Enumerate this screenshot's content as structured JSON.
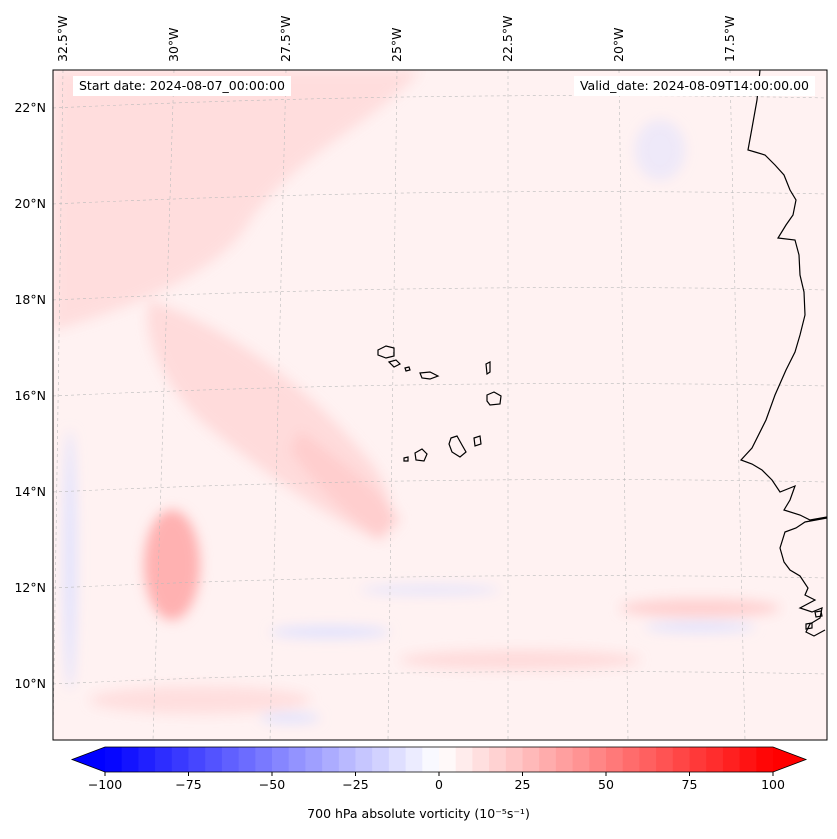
{
  "header": {
    "start_date": "Start date: 2024-08-07_00:00:00",
    "valid_date": "Valid_date: 2024-08-09T14:00:00.00"
  },
  "axes": {
    "lon_labels": [
      "32.5°W",
      "30°W",
      "27.5°W",
      "25°W",
      "22.5°W",
      "20°W",
      "17.5°W"
    ],
    "lat_labels": [
      "22°N",
      "20°N",
      "18°N",
      "16°N",
      "14°N",
      "12°N",
      "10°N"
    ]
  },
  "colorbar": {
    "label": "700 hPa absolute vorticity (10⁻⁵s⁻¹)",
    "min": -100,
    "max": 100,
    "ticks": [
      -100,
      -75,
      -50,
      -25,
      0,
      25,
      50,
      75,
      100
    ],
    "tick_labels": [
      "−100",
      "−75",
      "−50",
      "−25",
      "0",
      "25",
      "50",
      "75",
      "100"
    ],
    "low_color": "#0000ff",
    "mid_color": "#ffffff",
    "high_color": "#ff0000",
    "extend": "both"
  },
  "colors": {
    "background_field": "#fff2f2",
    "positive_vorticity": "#ffcccc",
    "negative_vorticity": "#dde0ff",
    "coastline": "#000000",
    "gridline": "#bbbbbb"
  }
}
